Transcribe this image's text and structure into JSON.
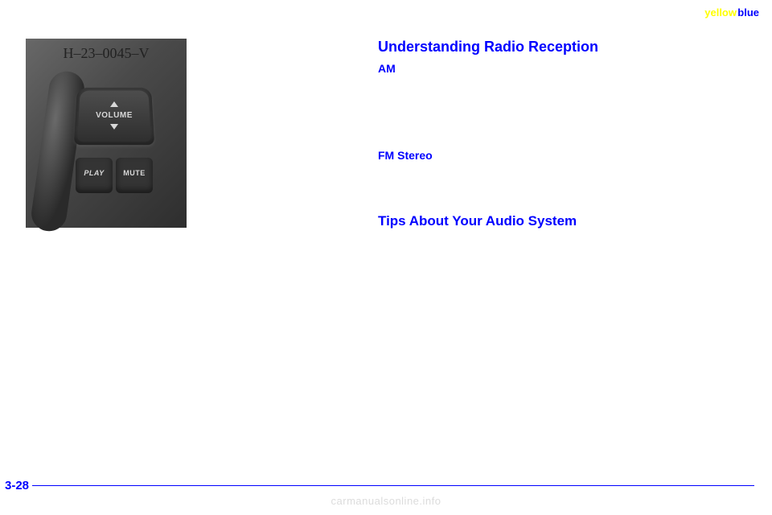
{
  "corner": {
    "yellow": "yellow",
    "blue": "blue"
  },
  "photo": {
    "overlay_label": "H–23–0045–V",
    "button_labels": {
      "volume": "VOLUME",
      "play": "PLAY",
      "mute": "MUTE"
    }
  },
  "headings": {
    "main": "Understanding Radio Reception",
    "am": "AM",
    "fm": "FM Stereo",
    "tips": "Tips About Your Audio System"
  },
  "page_number": "3-28",
  "watermark": "carmanualsonline.info",
  "colors": {
    "heading": "#0000ff",
    "corner_yellow": "#ffff00",
    "corner_blue": "#0000ff",
    "watermark": "#dcdcdc",
    "page_bg": "#ffffff"
  }
}
